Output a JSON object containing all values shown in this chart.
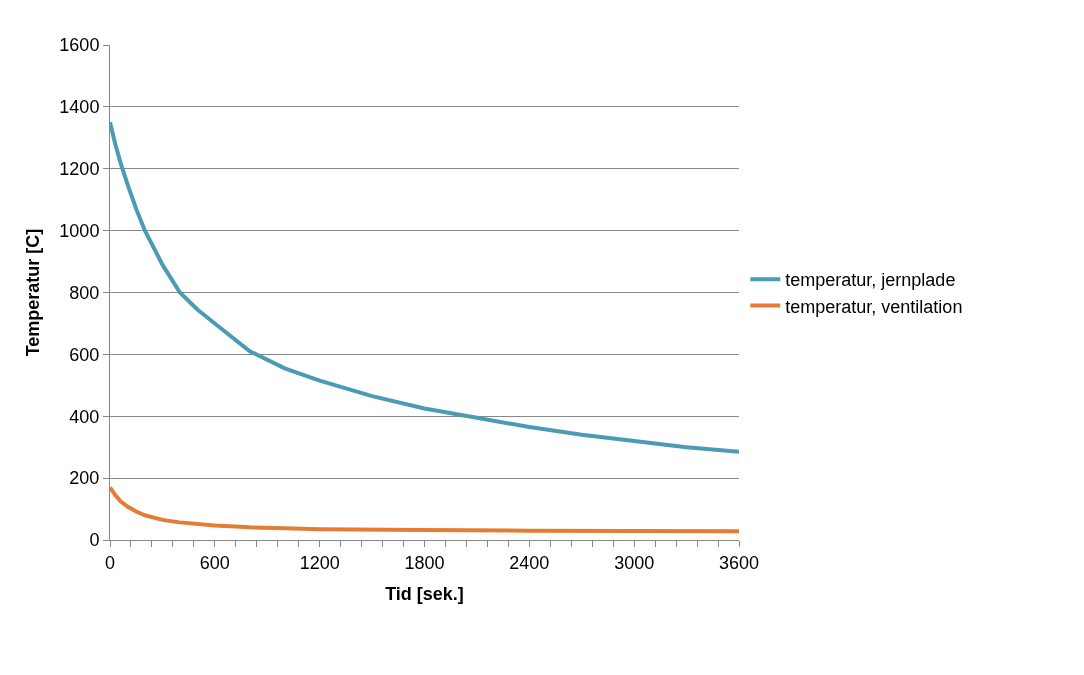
{
  "chart_data": {
    "type": "line",
    "xlabel": "Tid [sek.]",
    "ylabel": "Temperatur [C]",
    "xlim": [
      0,
      3600
    ],
    "ylim": [
      0,
      1600
    ],
    "xticks": [
      0,
      {
        "value": 120,
        "label": null
      },
      {
        "value": 240,
        "label": null
      },
      {
        "value": 360,
        "label": null
      },
      {
        "value": 480,
        "label": null
      },
      600,
      {
        "value": 720,
        "label": null
      },
      {
        "value": 840,
        "label": null
      },
      {
        "value": 960,
        "label": null
      },
      {
        "value": 1080,
        "label": null
      },
      1200,
      {
        "value": 1320,
        "label": null
      },
      {
        "value": 1440,
        "label": null
      },
      {
        "value": 1560,
        "label": null
      },
      {
        "value": 1680,
        "label": null
      },
      1800,
      {
        "value": 1920,
        "label": null
      },
      {
        "value": 2040,
        "label": null
      },
      {
        "value": 2160,
        "label": null
      },
      {
        "value": 2280,
        "label": null
      },
      2400,
      {
        "value": 2520,
        "label": null
      },
      {
        "value": 2640,
        "label": null
      },
      {
        "value": 2760,
        "label": null
      },
      {
        "value": 2880,
        "label": null
      },
      3000,
      {
        "value": 3120,
        "label": null
      },
      {
        "value": 3240,
        "label": null
      },
      {
        "value": 3360,
        "label": null
      },
      {
        "value": 3480,
        "label": null
      },
      3600
    ],
    "yticks": [
      0,
      200,
      400,
      600,
      800,
      1000,
      1200,
      1400,
      1600
    ],
    "grid": "y",
    "legend": "right",
    "marker": "none",
    "line_style": "solid",
    "series": [
      {
        "name": "temperatur, jernplade",
        "color": "#4a9bb3",
        "x": [
          0,
          30,
          60,
          100,
          150,
          200,
          300,
          400,
          500,
          600,
          800,
          1000,
          1200,
          1500,
          1800,
          2100,
          2400,
          2700,
          3000,
          3300,
          3600
        ],
        "values": [
          1350,
          1280,
          1220,
          1150,
          1070,
          1000,
          890,
          800,
          745,
          700,
          610,
          555,
          515,
          465,
          425,
          395,
          365,
          340,
          320,
          300,
          285
        ]
      },
      {
        "name": "temperatur, ventilation",
        "color": "#e47c34",
        "x": [
          0,
          30,
          60,
          100,
          150,
          200,
          300,
          400,
          600,
          800,
          1000,
          1200,
          1800,
          2400,
          3000,
          3600
        ],
        "values": [
          170,
          145,
          125,
          108,
          92,
          80,
          65,
          57,
          47,
          41,
          38,
          35,
          32,
          30,
          29,
          28
        ]
      }
    ]
  }
}
